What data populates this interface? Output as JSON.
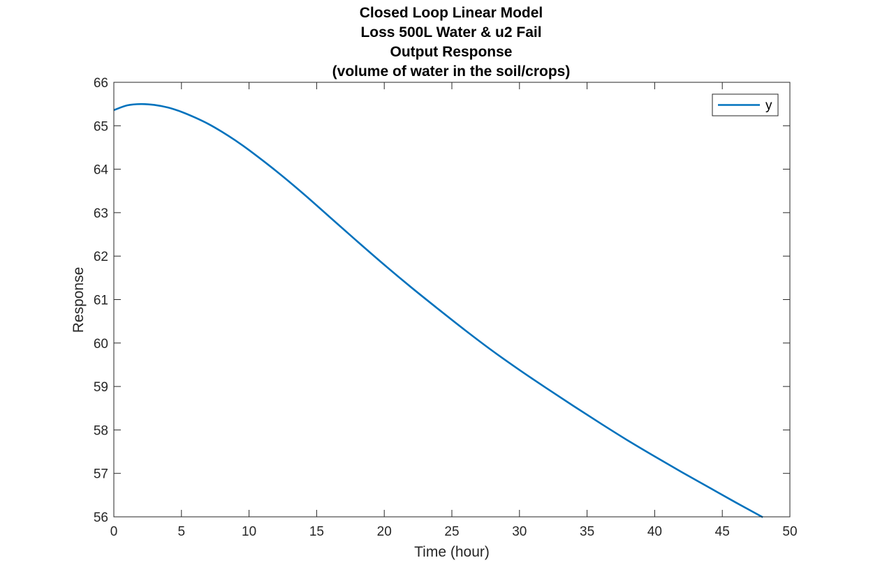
{
  "chart_data": {
    "type": "line",
    "title_lines": [
      "Closed Loop Linear Model",
      "Loss 500L Water & u2 Fail",
      "Output Response",
      "(volume of water in the soil/crops)"
    ],
    "xlabel": "Time (hour)",
    "ylabel": "Response",
    "xlim": [
      0,
      50
    ],
    "ylim": [
      56,
      66
    ],
    "xticks": [
      "0",
      "5",
      "10",
      "15",
      "20",
      "25",
      "30",
      "35",
      "40",
      "45",
      "50"
    ],
    "yticks": [
      "56",
      "57",
      "58",
      "59",
      "60",
      "61",
      "62",
      "63",
      "64",
      "65",
      "66"
    ],
    "grid": false,
    "legend_position": "top-right",
    "series": [
      {
        "name": "y",
        "color": "#0072BD",
        "x": [
          0,
          1,
          2,
          3,
          4,
          5,
          6,
          7,
          8,
          9,
          10,
          12,
          14,
          16,
          18,
          20,
          22,
          24,
          26,
          28,
          30,
          32,
          34,
          36,
          38,
          40,
          42,
          44,
          46,
          48
        ],
        "y": [
          65.36,
          65.47,
          65.5,
          65.48,
          65.42,
          65.32,
          65.19,
          65.04,
          64.86,
          64.66,
          64.44,
          63.96,
          63.44,
          62.89,
          62.34,
          61.8,
          61.28,
          60.78,
          60.29,
          59.82,
          59.38,
          58.96,
          58.55,
          58.15,
          57.76,
          57.39,
          57.03,
          56.68,
          56.33,
          55.99
        ]
      }
    ]
  }
}
